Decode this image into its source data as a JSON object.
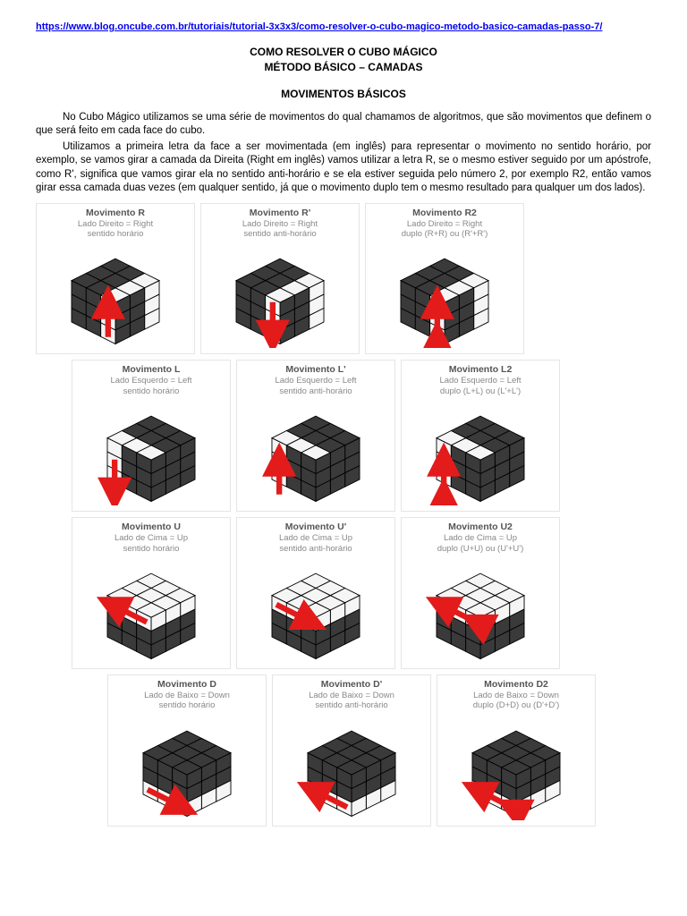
{
  "url": "https://www.blog.oncube.com.br/tutoriais/tutorial-3x3x3/como-resolver-o-cubo-magico-metodo-basico-camadas-passo-7/",
  "title_line1": "COMO RESOLVER O CUBO MÁGICO",
  "title_line2": "MÉTODO BÁSICO – CAMADAS",
  "section_title": "MOVIMENTOS BÁSICOS",
  "para1": "No Cubo Mágico utilizamos se uma série de movimentos do qual chamamos de algoritmos, que são movimentos que definem o que será feito em cada face do cubo.",
  "para2": "Utilizamos a primeira letra da face a ser movimentada (em inglês) para representar o movimento no sentido horário, por exemplo, se vamos girar a camada da Direita (Right em inglês) vamos utilizar a letra R, se o mesmo estiver seguido por um apóstrofe, como R', significa que vamos girar ela no sentido anti-horário e se ela estiver seguida pelo número 2, por exemplo R2, então vamos girar essa camada duas vezes (em qualquer sentido, já que o movimento duplo tem o mesmo resultado para qualquer um dos lados).",
  "colors": {
    "cube_dark": "#3a3a3a",
    "cube_light": "#f5f5f5",
    "cube_stroke": "#000000",
    "arrow": "#e31b1b",
    "cell_border": "#e5e5e5",
    "title_text": "#555555",
    "sub_text": "#888888"
  },
  "rows": [
    {
      "indent": 0,
      "cells": [
        {
          "title": "Movimento R",
          "sub1": "Lado Direito = Right",
          "sub2": "sentido horário",
          "highlight": "right-col",
          "arrow": "up-right"
        },
        {
          "title": "Movimento R'",
          "sub1": "Lado Direito = Right",
          "sub2": "sentido anti-horário",
          "highlight": "right-col",
          "arrow": "down-right"
        },
        {
          "title": "Movimento R2",
          "sub1": "Lado Direito = Right",
          "sub2": "duplo (R+R) ou (R'+R')",
          "highlight": "right-col",
          "arrow": "updown-right"
        }
      ]
    },
    {
      "indent": 1,
      "cells": [
        {
          "title": "Movimento L",
          "sub1": "Lado Esquerdo = Left",
          "sub2": "sentido horário",
          "highlight": "left-col",
          "arrow": "down-left"
        },
        {
          "title": "Movimento L'",
          "sub1": "Lado Esquerdo = Left",
          "sub2": "sentido anti-horário",
          "highlight": "left-col",
          "arrow": "up-left"
        },
        {
          "title": "Movimento L2",
          "sub1": "Lado Esquerdo = Left",
          "sub2": "duplo (L+L) ou (L'+L')",
          "highlight": "left-col",
          "arrow": "updown-left"
        }
      ]
    },
    {
      "indent": 1,
      "cells": [
        {
          "title": "Movimento U",
          "sub1": "Lado de Cima = Up",
          "sub2": "sentido horário",
          "highlight": "top-row",
          "arrow": "left-top"
        },
        {
          "title": "Movimento U'",
          "sub1": "Lado de Cima = Up",
          "sub2": "sentido anti-horário",
          "highlight": "top-row",
          "arrow": "right-top"
        },
        {
          "title": "Movimento U2",
          "sub1": "Lado de Cima = Up",
          "sub2": "duplo (U+U) ou (U'+U')",
          "highlight": "top-row",
          "arrow": "leftright-top"
        }
      ]
    },
    {
      "indent": 2,
      "cells": [
        {
          "title": "Movimento D",
          "sub1": "Lado de Baixo = Down",
          "sub2": "sentido horário",
          "highlight": "bottom-row",
          "arrow": "right-bottom"
        },
        {
          "title": "Movimento D'",
          "sub1": "Lado de Baixo = Down",
          "sub2": "sentido anti-horário",
          "highlight": "bottom-row",
          "arrow": "left-bottom"
        },
        {
          "title": "Movimento D2",
          "sub1": "Lado de Baixo = Down",
          "sub2": "duplo (D+D) ou (D'+D')",
          "highlight": "bottom-row",
          "arrow": "leftright-bottom"
        }
      ]
    }
  ]
}
